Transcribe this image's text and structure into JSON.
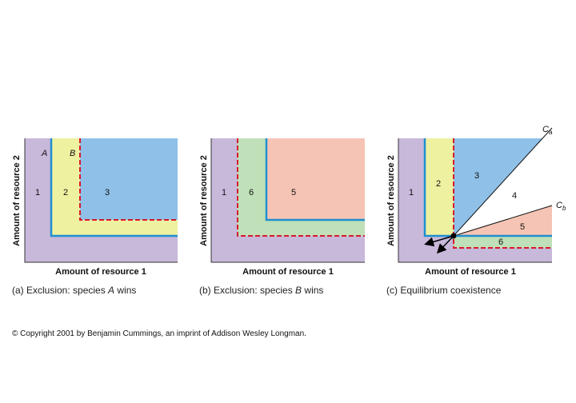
{
  "panels": [
    {
      "id": "a",
      "x_axis_label": "Amount of resource 1",
      "y_axis_label": "Amount of resource 2",
      "regions": [
        "1",
        "2",
        "3"
      ],
      "species_labels": [
        "A",
        "B"
      ],
      "caption_prefix": "(a) Exclusion: species ",
      "caption_species": "A",
      "caption_suffix": " wins"
    },
    {
      "id": "b",
      "x_axis_label": "Amount of resource 1",
      "y_axis_label": "Amount of resource 2",
      "regions": [
        "1",
        "6",
        "5"
      ],
      "caption_prefix": "(b) Exclusion: species ",
      "caption_species": "B",
      "caption_suffix": " wins"
    },
    {
      "id": "c",
      "x_axis_label": "Amount of resource 1",
      "y_axis_label": "Amount of resource 2",
      "regions": [
        "1",
        "2",
        "3",
        "4",
        "5",
        "6"
      ],
      "line_labels": [
        "C",
        "a",
        "C",
        "b"
      ],
      "caption": "(c) Equilibrium coexistence"
    }
  ],
  "colors": {
    "purple_region": "#c8b8da",
    "yellow_region": "#eef1a0",
    "blue_region": "#8fc0e8",
    "green_region": "#bfe0b8",
    "pink_region": "#f6c4b4",
    "species_a_isocline": "#1e8fd0",
    "species_b_isocline": "#d7192b"
  },
  "copyright": "© Copyright 2001 by Benjamin Cummings, an imprint of Addison Wesley Longman."
}
